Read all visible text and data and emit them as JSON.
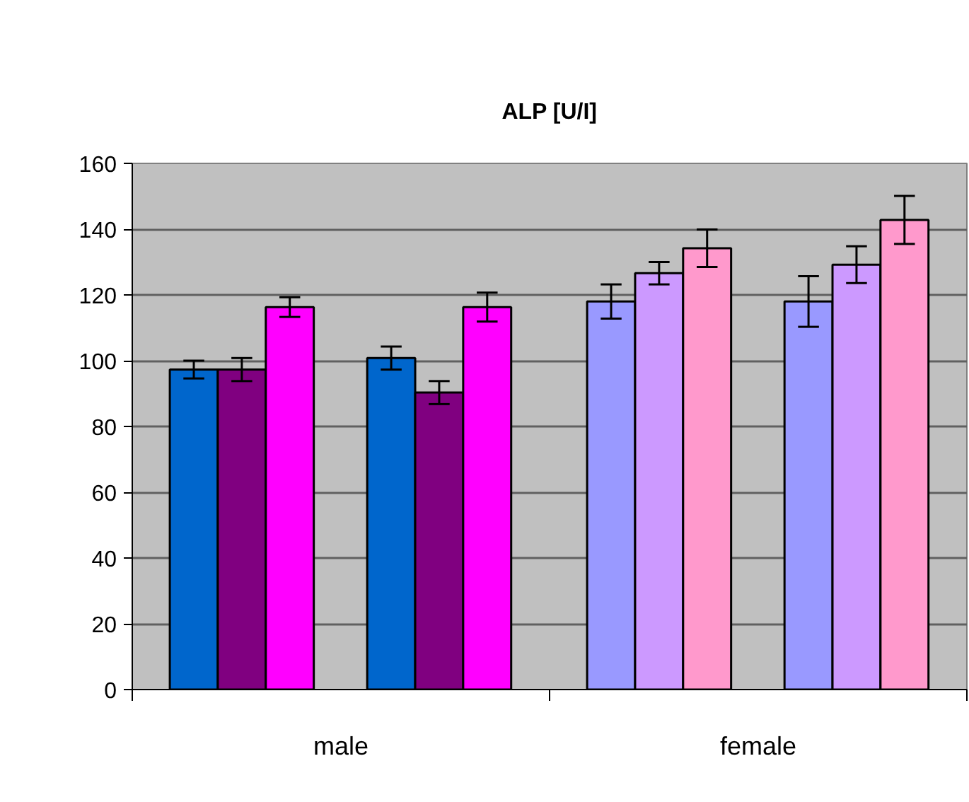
{
  "chart_data": {
    "type": "bar",
    "title": "ALP [U/I]",
    "categories": [
      "male",
      "female"
    ],
    "series": [
      {
        "colors": [
          "#0066cc",
          "#9999ff"
        ],
        "values": [
          97.3,
          118.0
        ],
        "errors": [
          2.7,
          5.2
        ]
      },
      {
        "colors": [
          "#800080",
          "#cc99ff"
        ],
        "values": [
          97.3,
          126.6
        ],
        "errors": [
          3.5,
          3.4
        ]
      },
      {
        "colors": [
          "#ff00ff",
          "#ff99cc"
        ],
        "values": [
          116.3,
          134.2
        ],
        "errors": [
          3.0,
          5.7
        ]
      },
      {
        "colors": [
          "#0066cc",
          "#9999ff"
        ],
        "values": [
          100.8,
          118.0
        ],
        "errors": [
          3.5,
          7.7
        ]
      },
      {
        "colors": [
          "#800080",
          "#cc99ff"
        ],
        "values": [
          90.3,
          129.2
        ],
        "errors": [
          3.5,
          5.6
        ]
      },
      {
        "colors": [
          "#ff00ff",
          "#ff99cc"
        ],
        "values": [
          116.3,
          142.8
        ],
        "errors": [
          4.4,
          7.3
        ]
      }
    ],
    "ylim": [
      0,
      160
    ],
    "yticks": [
      0,
      20,
      40,
      60,
      80,
      100,
      120,
      140,
      160
    ],
    "grid": "y"
  }
}
